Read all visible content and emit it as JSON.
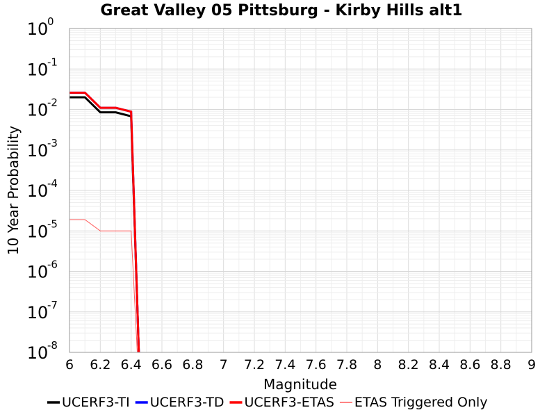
{
  "chart_data": {
    "type": "line",
    "title": "Great Valley 05 Pittsburg - Kirby Hills alt1",
    "xlabel": "Magnitude",
    "ylabel": "10 Year Probability",
    "xlim": [
      6,
      9
    ],
    "ylim": [
      1e-08,
      1
    ],
    "y_scale": "log",
    "grid": true,
    "legend_position": "bottom",
    "x_ticks": [
      "6",
      "6.2",
      "6.4",
      "6.6",
      "6.8",
      "7",
      "7.2",
      "7.4",
      "7.6",
      "7.8",
      "8",
      "8.2",
      "8.4",
      "8.6",
      "8.8",
      "9"
    ],
    "y_ticks": [
      {
        "base": "10",
        "exp": "0"
      },
      {
        "base": "10",
        "exp": "-1"
      },
      {
        "base": "10",
        "exp": "-2"
      },
      {
        "base": "10",
        "exp": "-3"
      },
      {
        "base": "10",
        "exp": "-4"
      },
      {
        "base": "10",
        "exp": "-5"
      },
      {
        "base": "10",
        "exp": "-6"
      },
      {
        "base": "10",
        "exp": "-7"
      },
      {
        "base": "10",
        "exp": "-8"
      }
    ],
    "series": [
      {
        "name": "UCERF3-TI",
        "color": "#000000",
        "width": 3,
        "x": [
          6.0,
          6.1,
          6.2,
          6.3,
          6.4,
          6.45
        ],
        "y": [
          0.02,
          0.02,
          0.0085,
          0.0085,
          0.0068,
          1e-08
        ]
      },
      {
        "name": "UCERF3-TD",
        "color": "#0000ff",
        "width": 3,
        "x": [
          6.0,
          6.1,
          6.2,
          6.3,
          6.4,
          6.45
        ],
        "y": [
          0.026,
          0.026,
          0.011,
          0.011,
          0.0088,
          1e-08
        ]
      },
      {
        "name": "UCERF3-ETAS",
        "color": "#ff0000",
        "width": 3,
        "x": [
          6.0,
          6.1,
          6.2,
          6.3,
          6.4,
          6.45
        ],
        "y": [
          0.026,
          0.026,
          0.011,
          0.011,
          0.0088,
          1e-08
        ]
      },
      {
        "name": "ETAS Triggered Only",
        "color": "#ff5a5a",
        "width": 1,
        "x": [
          6.0,
          6.1,
          6.2,
          6.3,
          6.4,
          6.44
        ],
        "y": [
          1.9e-05,
          1.9e-05,
          1e-05,
          1e-05,
          1e-05,
          1e-08
        ]
      }
    ]
  }
}
